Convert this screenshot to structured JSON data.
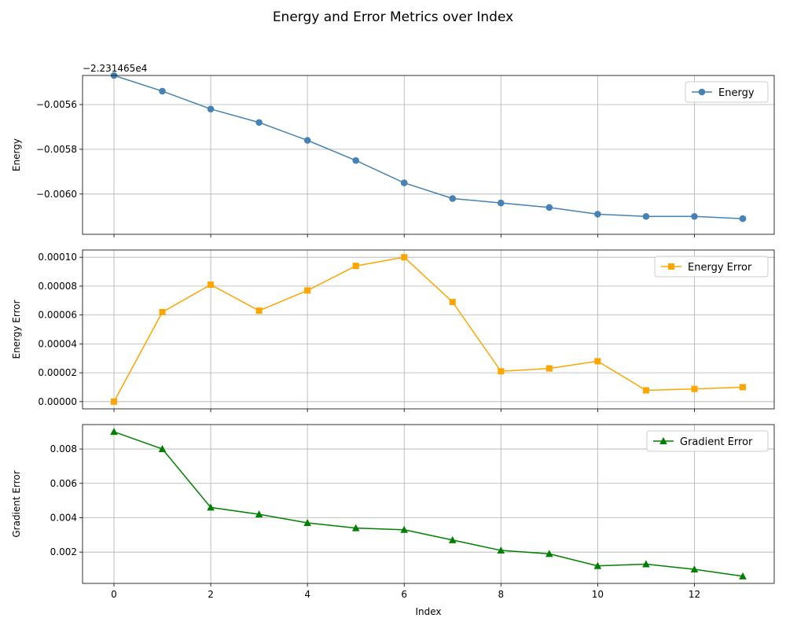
{
  "figure": {
    "title": "Energy and Error Metrics over Index"
  },
  "chart_data": [
    {
      "type": "line",
      "ylabel": "Energy",
      "xlabel": "",
      "offset_label": "−2.231465e4",
      "x": [
        0,
        1,
        2,
        3,
        4,
        5,
        6,
        7,
        8,
        9,
        10,
        11,
        12,
        13
      ],
      "series": [
        {
          "name": "Energy",
          "color": "#4682b4",
          "marker": "circle",
          "values": [
            -0.00547,
            -0.00554,
            -0.00562,
            -0.00568,
            -0.00576,
            -0.00585,
            -0.00595,
            -0.00602,
            -0.00604,
            -0.00606,
            -0.00609,
            -0.0061,
            -0.0061,
            -0.00611
          ]
        }
      ],
      "xlim": [
        -0.65,
        13.65
      ],
      "ylim": [
        -0.00618,
        -0.00547
      ],
      "xticks": [
        0,
        2,
        4,
        6,
        8,
        10,
        12
      ],
      "yticks": [
        -0.0056,
        -0.0058,
        -0.006
      ],
      "ytick_labels": [
        "−0.0056",
        "−0.0058",
        "−0.0060"
      ],
      "show_xtick_labels": false,
      "grid": true,
      "legend_position": "upper right"
    },
    {
      "type": "line",
      "ylabel": "Energy Error",
      "xlabel": "",
      "x": [
        0,
        1,
        2,
        3,
        4,
        5,
        6,
        7,
        8,
        9,
        10,
        11,
        12,
        13
      ],
      "series": [
        {
          "name": "Energy Error",
          "color": "#ffa500",
          "marker": "square",
          "values": [
            0.0,
            6.2e-05,
            8.1e-05,
            6.3e-05,
            7.7e-05,
            9.4e-05,
            0.0001,
            6.9e-05,
            2.1e-05,
            2.3e-05,
            2.8e-05,
            7.8e-06,
            8.8e-06,
            1e-05
          ]
        }
      ],
      "xlim": [
        -0.65,
        13.65
      ],
      "ylim": [
        -5e-06,
        0.000105
      ],
      "xticks": [
        0,
        2,
        4,
        6,
        8,
        10,
        12
      ],
      "yticks": [
        0,
        2e-05,
        4e-05,
        6e-05,
        8e-05,
        0.0001
      ],
      "ytick_labels": [
        "0.00000",
        "0.00002",
        "0.00004",
        "0.00006",
        "0.00008",
        "0.00010"
      ],
      "show_xtick_labels": false,
      "grid": true,
      "legend_position": "upper right"
    },
    {
      "type": "line",
      "ylabel": "Gradient Error",
      "xlabel": "Index",
      "x": [
        0,
        1,
        2,
        3,
        4,
        5,
        6,
        7,
        8,
        9,
        10,
        11,
        12,
        13
      ],
      "series": [
        {
          "name": "Gradient Error",
          "color": "#008000",
          "marker": "triangle",
          "values": [
            0.009,
            0.008,
            0.0046,
            0.0042,
            0.0037,
            0.0034,
            0.0033,
            0.0027,
            0.0021,
            0.0019,
            0.0012,
            0.0013,
            0.001,
            0.0006
          ]
        }
      ],
      "xlim": [
        -0.65,
        13.65
      ],
      "ylim": [
        0.00018,
        0.00942
      ],
      "xticks": [
        0,
        2,
        4,
        6,
        8,
        10,
        12
      ],
      "xtick_labels": [
        "0",
        "2",
        "4",
        "6",
        "8",
        "10",
        "12"
      ],
      "yticks": [
        0.002,
        0.004,
        0.006,
        0.008
      ],
      "ytick_labels": [
        "0.002",
        "0.004",
        "0.006",
        "0.008"
      ],
      "show_xtick_labels": true,
      "grid": true,
      "legend_position": "upper right"
    }
  ]
}
